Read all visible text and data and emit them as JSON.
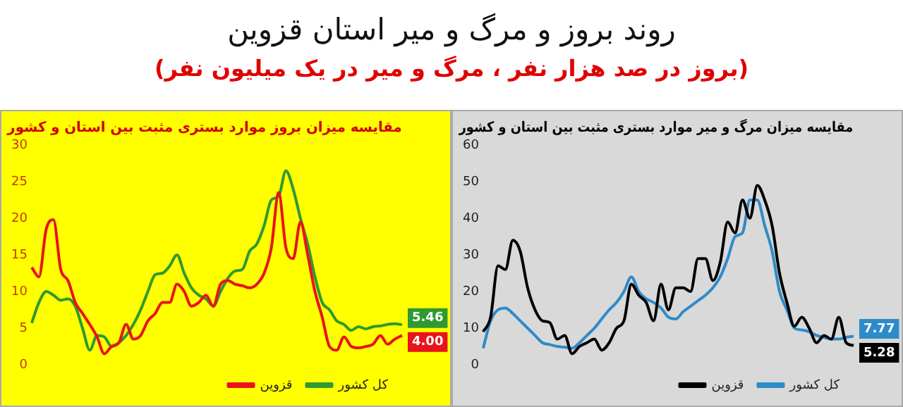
{
  "chart_data": [
    {
      "type": "line",
      "title": "روند بروز و مرگ و میر استان قزوین",
      "subtitle": "(بروز در صد هزار نفر ، مرگ و میر در یک میلیون نفر)",
      "annotations": [
        "مقایسه میزان بروز موارد بستری مثبت بین استان و کشور"
      ],
      "categories": [
        null,
        null,
        null,
        null,
        null,
        null,
        null,
        null,
        null,
        null,
        null,
        null,
        null,
        null,
        null,
        null,
        null,
        null,
        null,
        null,
        null,
        null,
        null,
        null,
        null,
        null,
        null,
        null,
        null,
        null,
        null,
        null,
        null,
        null,
        null,
        null,
        null,
        null,
        null,
        null,
        null,
        null,
        null,
        null,
        null,
        null,
        null,
        null,
        null,
        null,
        null,
        null
      ],
      "series": [
        {
          "name": "قزوین",
          "color": "#e8141b",
          "values": [
            13.3,
            12,
            18.5,
            19.8,
            13,
            11.5,
            8.5,
            7,
            5.5,
            3.8,
            1.5,
            2.5,
            3,
            5.5,
            3.5,
            4,
            6,
            7,
            8.5,
            8.5,
            11,
            10,
            8,
            8.5,
            9.5,
            8,
            11,
            11.5,
            11,
            10.8,
            10.5,
            11,
            12.5,
            16,
            23.5,
            16,
            14.5,
            19.5,
            15,
            10,
            6.5,
            2.5,
            2,
            3.8,
            2.5,
            2.3,
            2.5,
            2.8,
            4,
            2.8,
            3.5,
            4.0
          ],
          "value_labels": [
            null,
            null,
            null,
            null,
            null,
            null,
            null,
            null,
            null,
            null,
            null,
            null,
            null,
            null,
            null,
            null,
            null,
            null,
            null,
            null,
            null,
            null,
            null,
            null,
            null,
            null,
            null,
            null,
            null,
            null,
            null,
            null,
            null,
            null,
            null,
            null,
            null,
            null,
            null,
            null,
            null,
            null,
            null,
            null,
            null,
            null,
            null,
            null,
            null,
            null,
            null,
            "4.00"
          ]
        },
        {
          "name": "کل کشور",
          "color": "#2f9a2f",
          "values": [
            5.7,
            8.5,
            10,
            9.5,
            8.8,
            9,
            8,
            5,
            2,
            4,
            3.8,
            2.5,
            3,
            4,
            5.5,
            7.5,
            10,
            12.3,
            12.5,
            13.5,
            15,
            12.5,
            10.5,
            9.5,
            9,
            8,
            10,
            11.8,
            12.8,
            13,
            15.5,
            16.5,
            19,
            22.5,
            23,
            26.5,
            24,
            20,
            16.5,
            12,
            8.5,
            7.5,
            6,
            5.5,
            4.7,
            5.2,
            4.9,
            5.2,
            5.3,
            5.5,
            5.6,
            5.46
          ],
          "value_labels": [
            null,
            null,
            null,
            null,
            null,
            null,
            null,
            null,
            null,
            null,
            null,
            null,
            null,
            null,
            null,
            null,
            null,
            null,
            null,
            null,
            null,
            null,
            null,
            null,
            null,
            null,
            null,
            null,
            null,
            null,
            null,
            null,
            null,
            null,
            null,
            null,
            null,
            null,
            null,
            null,
            null,
            null,
            null,
            null,
            null,
            null,
            null,
            null,
            null,
            null,
            null,
            "5.46"
          ]
        }
      ],
      "ylim": [
        0,
        30
      ],
      "yticks": [
        0,
        5,
        10,
        15,
        20,
        25,
        30
      ],
      "legend": "bottom right",
      "tick_labels": "y"
    },
    {
      "type": "line",
      "title": "مقایسه میزان مرگ و میر موارد بستری مثبت بین استان و کشور",
      "categories": [
        null,
        null,
        null,
        null,
        null,
        null,
        null,
        null,
        null,
        null,
        null,
        null,
        null,
        null,
        null,
        null,
        null,
        null,
        null,
        null,
        null,
        null,
        null,
        null,
        null,
        null,
        null,
        null,
        null,
        null,
        null,
        null,
        null,
        null,
        null,
        null,
        null,
        null,
        null,
        null,
        null,
        null,
        null,
        null,
        null,
        null,
        null,
        null,
        null,
        null,
        null
      ],
      "series": [
        {
          "name": "قزوین",
          "color": "#000000",
          "values": [
            9,
            13,
            27,
            26,
            34,
            31,
            21,
            15,
            12,
            11.5,
            7,
            8,
            3,
            5,
            6,
            7,
            4,
            6,
            10,
            12,
            22,
            19,
            17,
            12,
            22,
            15,
            21,
            21,
            20,
            29,
            29,
            23,
            28,
            39,
            36,
            45,
            40,
            49,
            45,
            38,
            25,
            17,
            10.5,
            13,
            10,
            6,
            8,
            7,
            13,
            6,
            5.28
          ],
          "value_labels": [
            null,
            null,
            null,
            null,
            null,
            null,
            null,
            null,
            null,
            null,
            null,
            null,
            null,
            null,
            null,
            null,
            null,
            null,
            null,
            null,
            null,
            null,
            null,
            null,
            null,
            null,
            null,
            null,
            null,
            null,
            null,
            null,
            null,
            null,
            null,
            null,
            null,
            null,
            null,
            null,
            null,
            null,
            null,
            null,
            null,
            null,
            null,
            null,
            null,
            null,
            "5.28"
          ]
        },
        {
          "name": "کل کشور",
          "color": "#2e8bc9",
          "values": [
            4.5,
            12,
            15,
            15.5,
            14,
            12,
            10,
            8,
            6,
            5.5,
            5,
            4.8,
            4.5,
            6,
            8,
            10,
            12.5,
            15,
            17,
            20,
            24,
            20,
            18,
            17,
            15.5,
            13,
            12.5,
            14.5,
            16,
            17.5,
            19,
            21,
            24,
            29,
            35,
            36,
            45,
            45,
            38,
            31,
            20,
            15,
            10,
            9.5,
            9,
            8,
            7.5,
            7,
            7,
            7.5,
            7.77
          ],
          "value_labels": [
            null,
            null,
            null,
            null,
            null,
            null,
            null,
            null,
            null,
            null,
            null,
            null,
            null,
            null,
            null,
            null,
            null,
            null,
            null,
            null,
            null,
            null,
            null,
            null,
            null,
            null,
            null,
            null,
            null,
            null,
            null,
            null,
            null,
            null,
            null,
            null,
            null,
            null,
            null,
            null,
            null,
            null,
            null,
            null,
            null,
            null,
            null,
            null,
            null,
            null,
            "7.77"
          ]
        }
      ],
      "ylim": [
        0,
        60
      ],
      "yticks": [
        0,
        10,
        20,
        30,
        40,
        50,
        60
      ],
      "legend": "bottom right",
      "tick_labels": "y"
    }
  ]
}
